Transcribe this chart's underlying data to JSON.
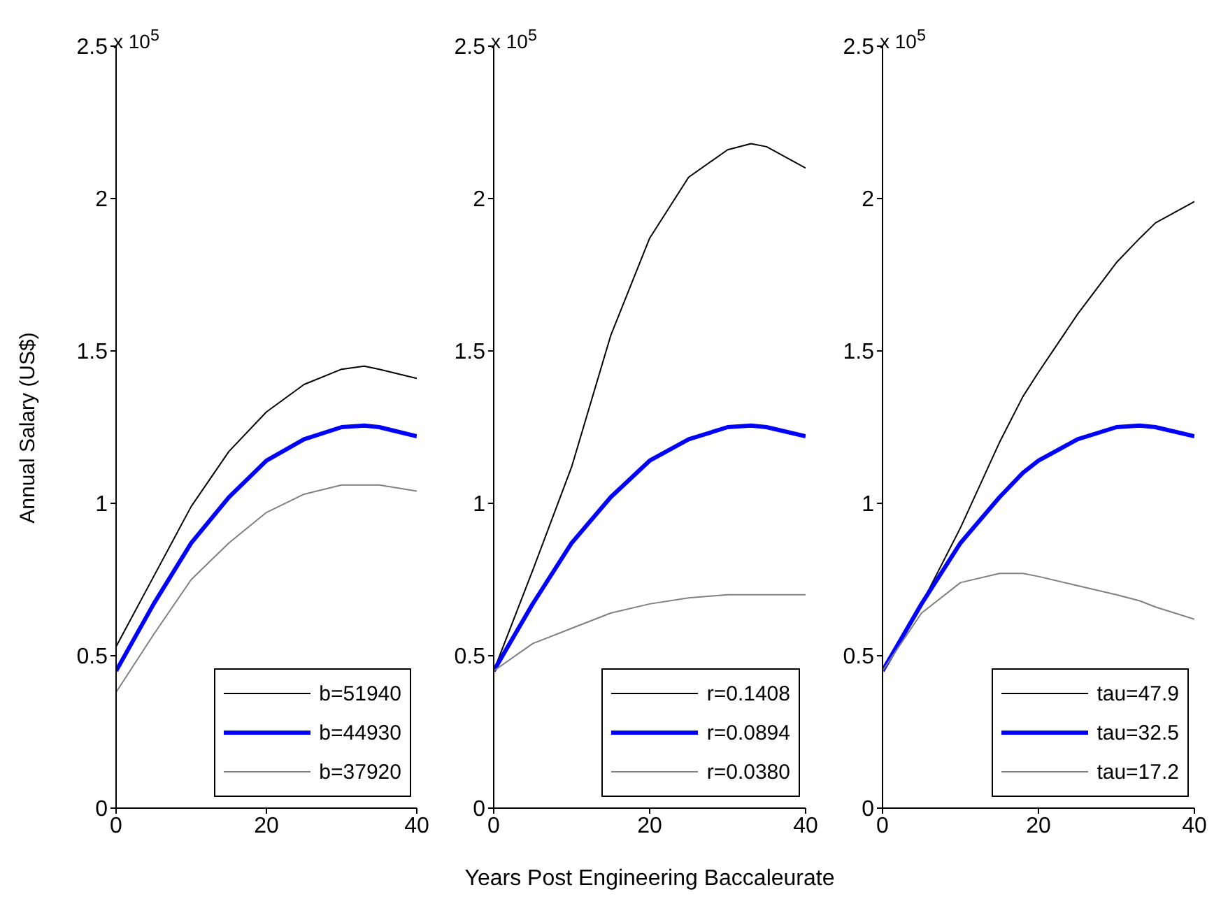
{
  "chart_data": [
    {
      "type": "line",
      "ylabel": "Annual Salary (US$)",
      "annotations": [
        "x 10$^{5}$"
      ],
      "xlim": [
        0,
        40
      ],
      "xticks": [
        0,
        20,
        40
      ],
      "ylim": [
        0,
        2.5
      ],
      "yticks": [
        0,
        0.5,
        1,
        1.5,
        2,
        2.5
      ],
      "legend": "bottom right",
      "marker": "none",
      "line_style": "solid",
      "x": [
        0,
        5,
        10,
        15,
        20,
        25,
        30,
        33,
        35,
        40
      ],
      "series": [
        {
          "name": "b=51940",
          "color": "#000000",
          "values": [
            0.53,
            0.76,
            0.99,
            1.17,
            1.3,
            1.39,
            1.44,
            1.45,
            1.44,
            1.41
          ]
        },
        {
          "name": "b=44930",
          "color": "#0000ff",
          "values": [
            0.45,
            0.67,
            0.87,
            1.02,
            1.14,
            1.21,
            1.25,
            1.255,
            1.25,
            1.22
          ]
        },
        {
          "name": "b=37920",
          "color": "#808080",
          "values": [
            0.38,
            0.57,
            0.75,
            0.87,
            0.97,
            1.03,
            1.06,
            1.06,
            1.06,
            1.04
          ]
        }
      ]
    },
    {
      "type": "line",
      "xlabel": "Years Post Engineering Baccaleurate",
      "annotations": [
        "x 10$^{5}$"
      ],
      "xlim": [
        0,
        40
      ],
      "xticks": [
        0,
        20,
        40
      ],
      "ylim": [
        0,
        2.5
      ],
      "yticks": [
        0,
        0.5,
        1,
        1.5,
        2,
        2.5
      ],
      "legend": "bottom right",
      "marker": "none",
      "line_style": "solid",
      "x": [
        0,
        5,
        10,
        15,
        20,
        25,
        30,
        33,
        35,
        40
      ],
      "series": [
        {
          "name": "r=0.1408",
          "color": "#000000",
          "values": [
            0.45,
            0.78,
            1.12,
            1.55,
            1.87,
            2.07,
            2.16,
            2.18,
            2.17,
            2.1
          ]
        },
        {
          "name": "r=0.0894",
          "color": "#0000ff",
          "values": [
            0.45,
            0.67,
            0.87,
            1.02,
            1.14,
            1.21,
            1.25,
            1.255,
            1.25,
            1.22
          ]
        },
        {
          "name": "r=0.0380",
          "color": "#808080",
          "values": [
            0.45,
            0.54,
            0.59,
            0.64,
            0.67,
            0.69,
            0.7,
            0.7,
            0.7,
            0.7
          ]
        }
      ]
    },
    {
      "type": "line",
      "annotations": [
        "x 10$^{5}$"
      ],
      "xlim": [
        0,
        40
      ],
      "xticks": [
        0,
        20,
        40
      ],
      "ylim": [
        0,
        2.5
      ],
      "yticks": [
        0,
        0.5,
        1,
        1.5,
        2,
        2.5
      ],
      "legend": "bottom right",
      "marker": "none",
      "line_style": "solid",
      "x": [
        0,
        5,
        10,
        15,
        18,
        20,
        25,
        30,
        33,
        35,
        40
      ],
      "series": [
        {
          "name": "tau=47.9",
          "color": "#000000",
          "values": [
            0.45,
            0.67,
            0.92,
            1.2,
            1.35,
            1.43,
            1.62,
            1.79,
            1.87,
            1.92,
            1.99
          ]
        },
        {
          "name": "tau=32.5",
          "color": "#0000ff",
          "values": [
            0.45,
            0.67,
            0.87,
            1.02,
            1.1,
            1.14,
            1.21,
            1.25,
            1.255,
            1.25,
            1.22
          ]
        },
        {
          "name": "tau=17.2",
          "color": "#808080",
          "values": [
            0.45,
            0.64,
            0.74,
            0.77,
            0.77,
            0.76,
            0.73,
            0.7,
            0.68,
            0.66,
            0.62
          ]
        }
      ]
    }
  ]
}
